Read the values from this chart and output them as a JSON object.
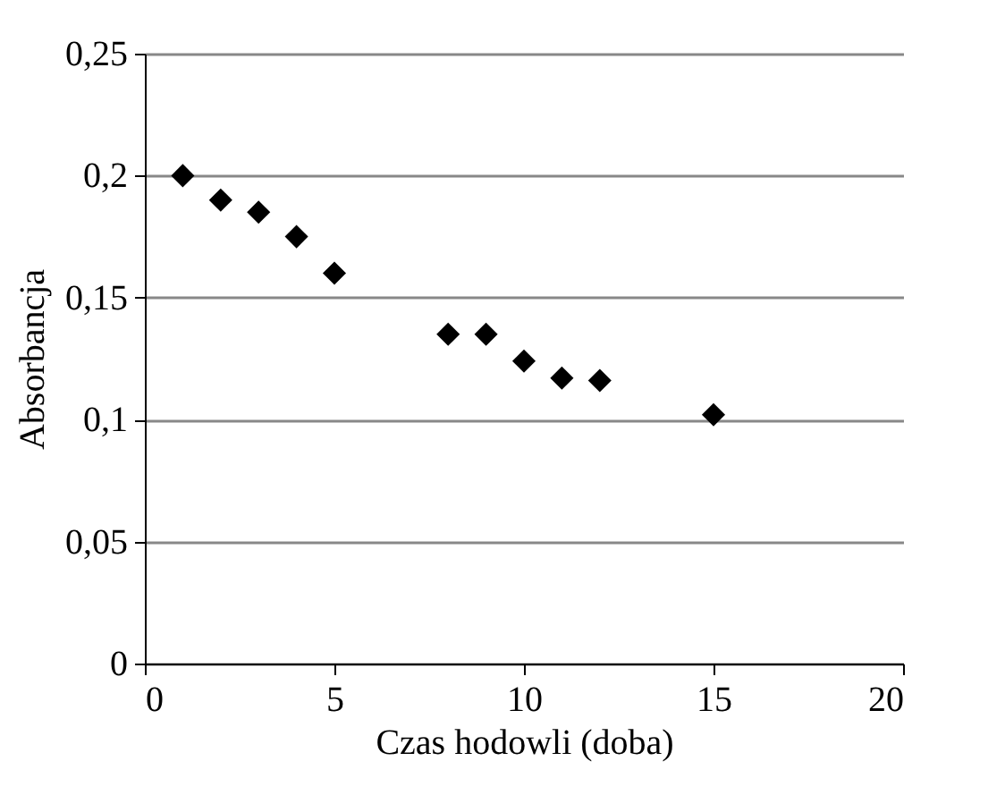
{
  "chart_data": {
    "type": "scatter",
    "xlabel": "Czas hodowli (doba)",
    "ylabel": "Absorbancja",
    "x": [
      1,
      2,
      3,
      4,
      5,
      8,
      9,
      10,
      11,
      12,
      15
    ],
    "values": [
      0.2,
      0.19,
      0.185,
      0.175,
      0.16,
      0.135,
      0.135,
      0.124,
      0.117,
      0.116,
      0.102
    ],
    "color": "#000000",
    "marker": "diamond",
    "grid": "y",
    "xlim": [
      0,
      20
    ],
    "xticks": [
      0,
      5,
      10,
      15,
      20
    ],
    "ylim": [
      0,
      0.25
    ],
    "yticks": [
      {
        "value": 0,
        "label": "0"
      },
      {
        "value": 0.05,
        "label": "0,05"
      },
      {
        "value": 0.1,
        "label": "0,1"
      },
      {
        "value": 0.15,
        "label": "0,15"
      },
      {
        "value": 0.2,
        "label": "0,2"
      },
      {
        "value": 0.25,
        "label": "0,25"
      }
    ]
  }
}
